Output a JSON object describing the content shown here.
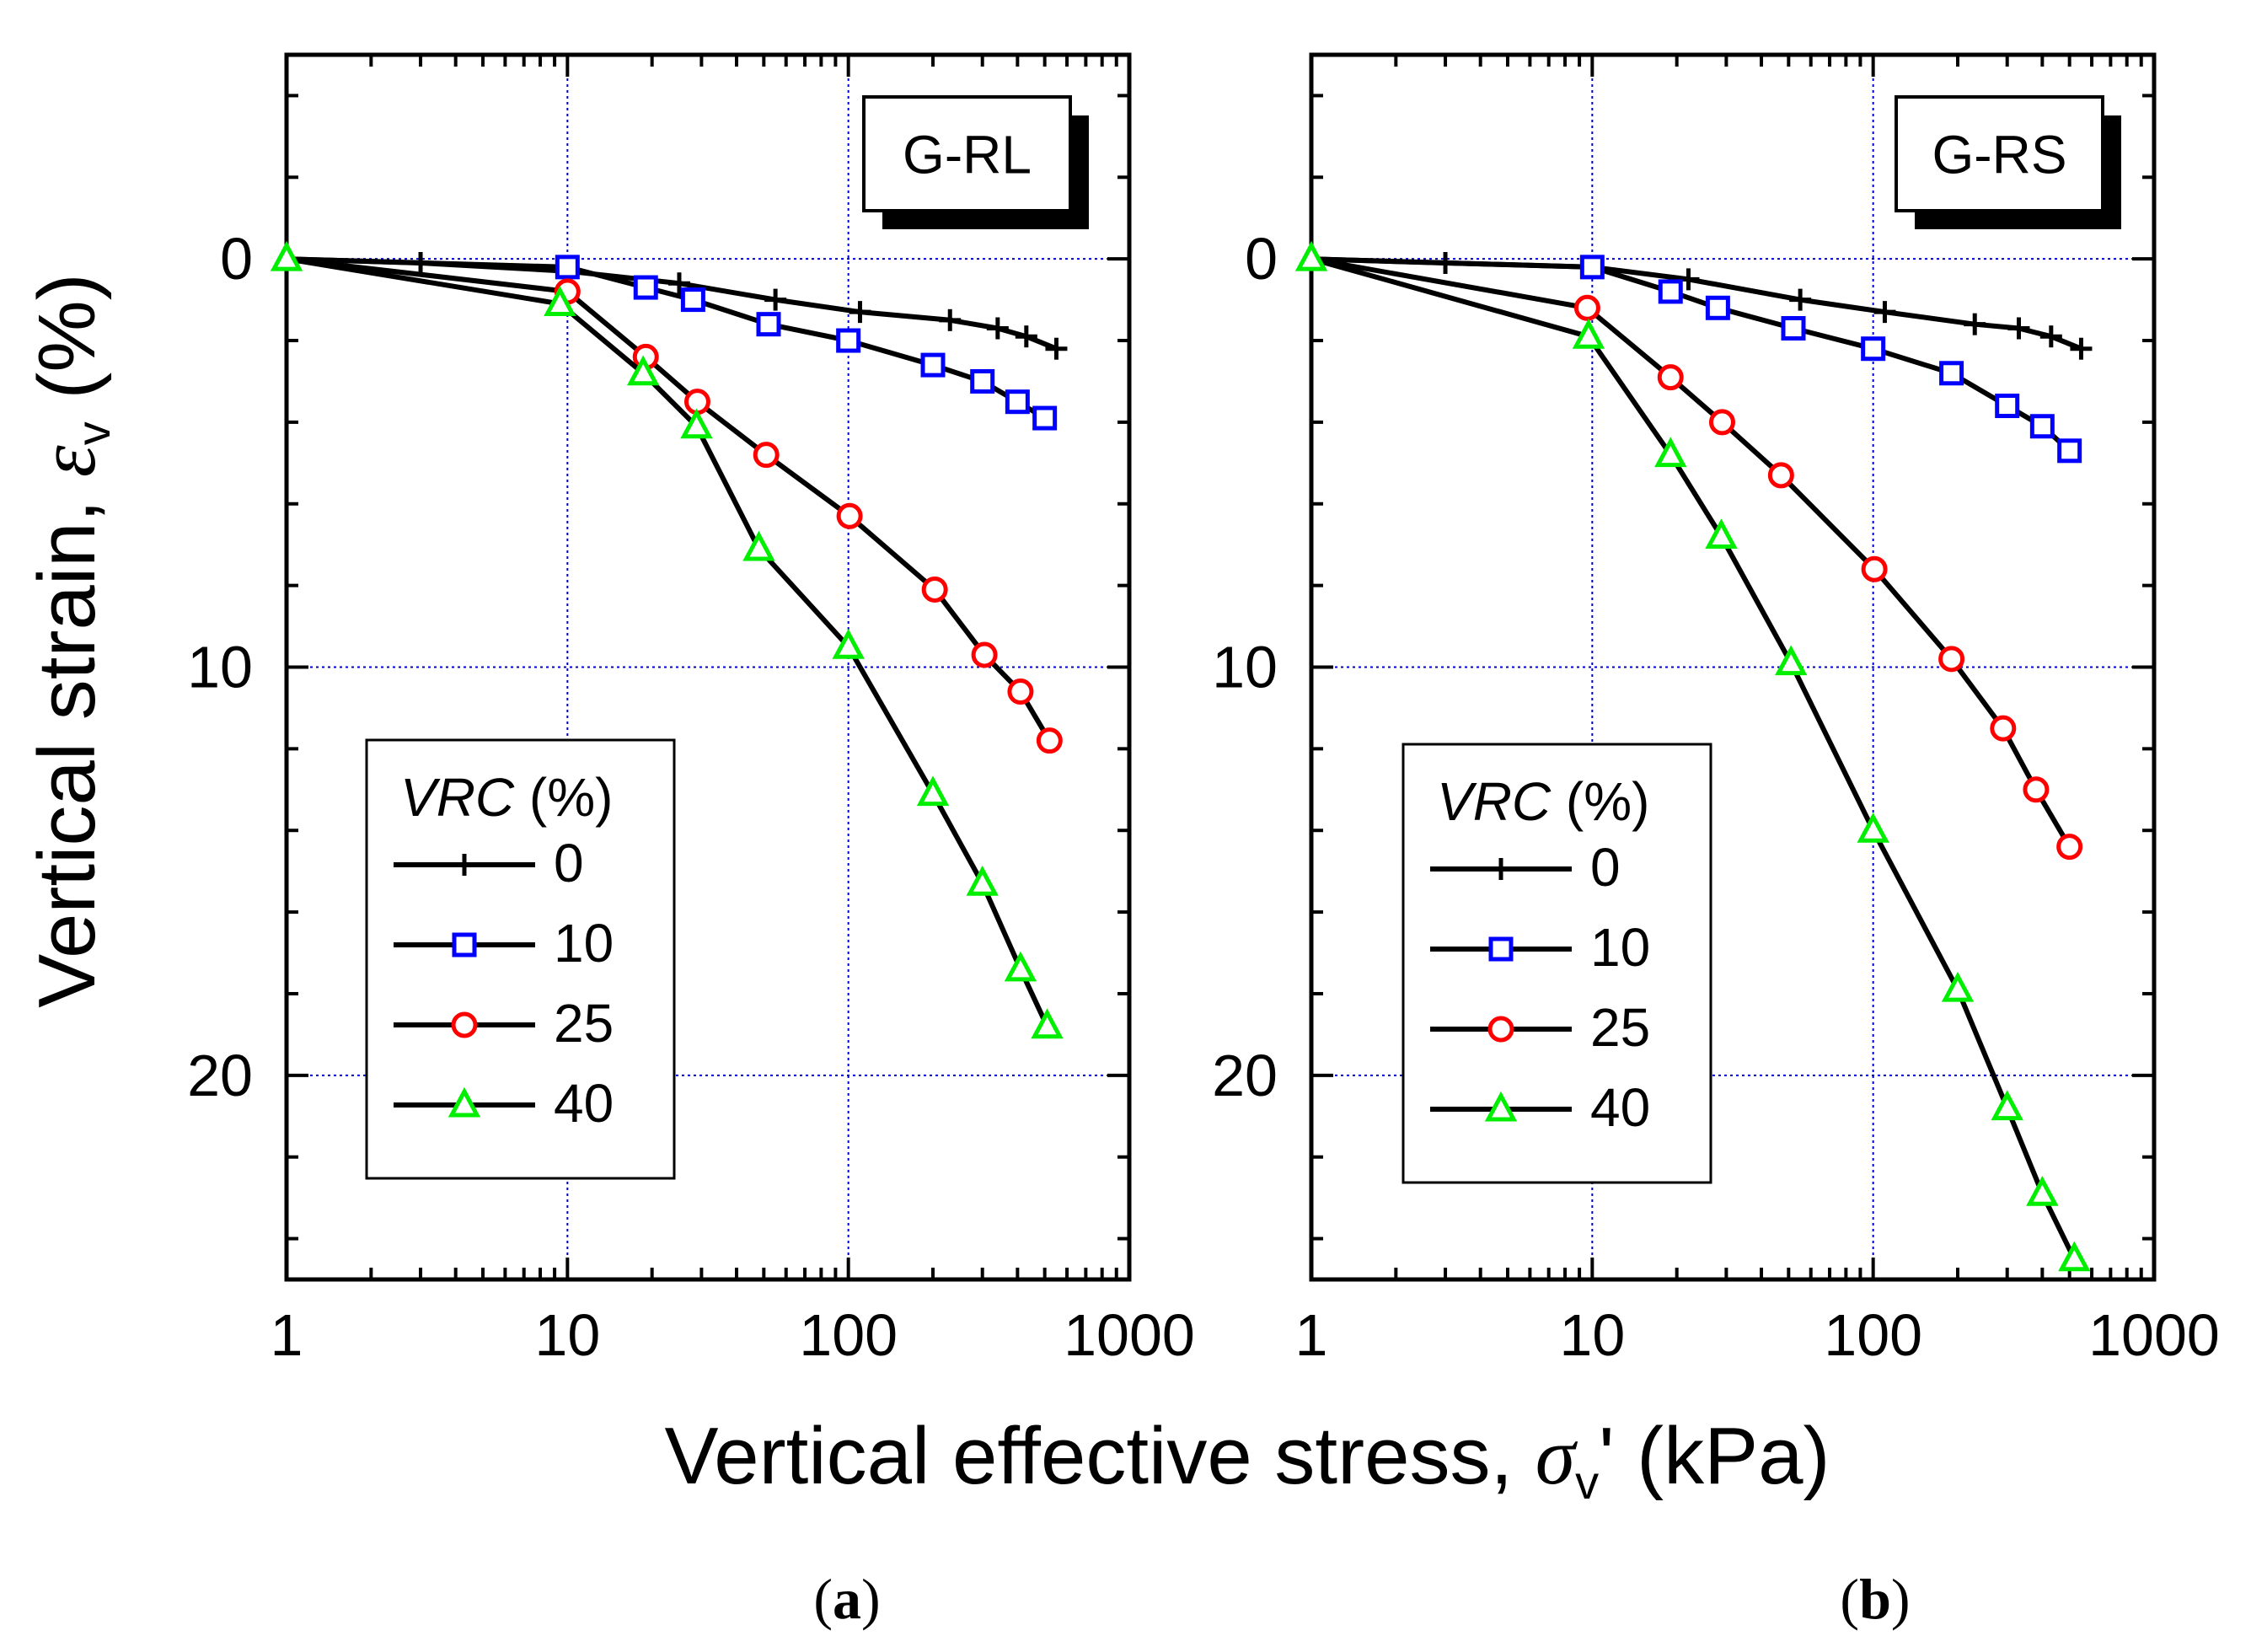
{
  "figure": {
    "y_axis_title_main": "Vertical strain, ",
    "y_axis_symbol": "ε",
    "y_axis_subscript": "v",
    "y_axis_unit": " (%)",
    "x_axis_title_main": "Vertical effective stress, ",
    "x_axis_symbol": "σ",
    "x_axis_subscript": "v",
    "x_axis_unit": "' (kPa)",
    "legend_title_italic": "VRC",
    "legend_title_unit": " (%)",
    "colors": {
      "VRC 0": "#000000",
      "VRC 10": "#0000ff",
      "VRC 25": "#ff0000",
      "VRC 40": "#00ee00",
      "grid": "#0000cc",
      "axis": "#000000"
    }
  },
  "chart_data": [
    {
      "type": "line",
      "panel_label": "(a)",
      "panel_label_parts": [
        "(",
        "a",
        ")"
      ],
      "tag": "G-RL",
      "xscale": "log",
      "xlim": [
        1,
        1000
      ],
      "ylim": [
        -5,
        25
      ],
      "y_inverted": true,
      "x_ticks": [
        "1",
        "10",
        "100",
        "1000"
      ],
      "y_ticks": [
        "0",
        "10",
        "20"
      ],
      "grid": true,
      "legend_title": "VRC (%)",
      "series": [
        {
          "name": "0",
          "marker": "plus",
          "x": [
            1,
            3,
            10,
            25,
            55,
            110,
            230,
            340,
            430,
            550
          ],
          "y": [
            0,
            0.1,
            0.3,
            0.6,
            1.0,
            1.3,
            1.5,
            1.7,
            1.9,
            2.2
          ]
        },
        {
          "name": "10",
          "marker": "square",
          "x": [
            1,
            10,
            19,
            28,
            52,
            100,
            200,
            300,
            400,
            500
          ],
          "y": [
            0,
            0.2,
            0.7,
            1.0,
            1.6,
            2.0,
            2.6,
            3.0,
            3.5,
            3.9
          ]
        },
        {
          "name": "25",
          "marker": "circle",
          "x": [
            1,
            10,
            19,
            29,
            51,
            101,
            203,
            305,
            410,
            520
          ],
          "y": [
            0,
            0.8,
            2.4,
            3.5,
            4.8,
            6.3,
            8.1,
            9.7,
            10.6,
            11.8
          ]
        },
        {
          "name": "40",
          "marker": "triangle",
          "x": [
            1,
            9.4,
            18.6,
            28.8,
            48,
            100,
            200,
            300,
            410,
            510
          ],
          "y": [
            0,
            1.1,
            2.8,
            4.1,
            7.1,
            9.5,
            13.1,
            15.3,
            17.4,
            18.8
          ]
        }
      ]
    },
    {
      "type": "line",
      "panel_label": "(b)",
      "panel_label_parts": [
        "(",
        "b",
        ")"
      ],
      "tag": "G-RS",
      "xscale": "log",
      "xlim": [
        1,
        1000
      ],
      "ylim": [
        -5,
        25
      ],
      "y_inverted": true,
      "x_ticks": [
        "1",
        "10",
        "100",
        "1000"
      ],
      "y_ticks": [
        "0",
        "10",
        "20"
      ],
      "grid": true,
      "legend_title": "VRC (%)",
      "series": [
        {
          "name": "0",
          "marker": "plus",
          "x": [
            1,
            3,
            10,
            22,
            55,
            110,
            230,
            330,
            430,
            550
          ],
          "y": [
            0,
            0.1,
            0.2,
            0.5,
            1.0,
            1.3,
            1.6,
            1.7,
            1.9,
            2.2
          ]
        },
        {
          "name": "10",
          "marker": "square",
          "x": [
            1,
            10,
            19,
            28,
            52,
            100,
            190,
            300,
            400,
            500
          ],
          "y": [
            0,
            0.2,
            0.8,
            1.2,
            1.7,
            2.2,
            2.8,
            3.6,
            4.1,
            4.7
          ]
        },
        {
          "name": "25",
          "marker": "circle",
          "x": [
            1,
            9.6,
            19,
            29,
            47,
            101,
            190,
            290,
            380,
            500
          ],
          "y": [
            0,
            1.2,
            2.9,
            4.0,
            5.3,
            7.6,
            9.8,
            11.5,
            13.0,
            14.4
          ]
        },
        {
          "name": "40",
          "marker": "triangle",
          "x": [
            1,
            9.7,
            19,
            28.8,
            51,
            100,
            200,
            300,
            400,
            520
          ],
          "y": [
            0,
            1.9,
            4.8,
            6.8,
            9.9,
            14.0,
            17.9,
            20.8,
            22.9,
            24.5
          ]
        }
      ]
    }
  ]
}
